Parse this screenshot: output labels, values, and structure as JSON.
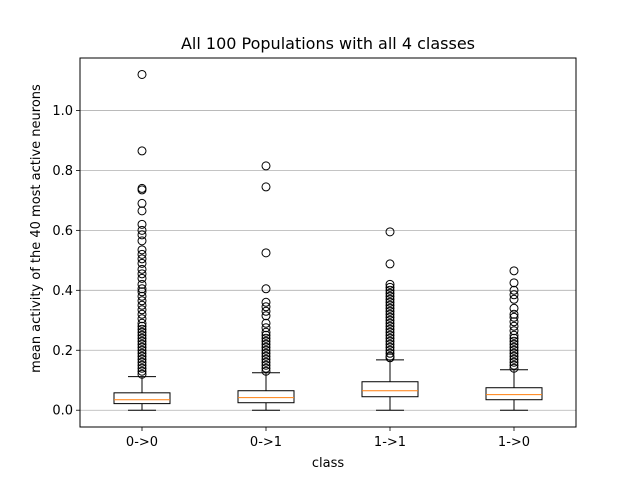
{
  "chart_data": {
    "type": "boxplot",
    "title": "All 100 Populations with all 4 classes",
    "xlabel": "class",
    "ylabel": "mean activity of the 40 most active neurons",
    "categories": [
      "0->0",
      "0->1",
      "1->1",
      "1->0"
    ],
    "ylim": [
      -0.056,
      1.175
    ],
    "yticks": [
      0.0,
      0.2,
      0.4,
      0.6,
      0.8,
      1.0
    ],
    "ytick_labels": [
      "0.0",
      "0.2",
      "0.4",
      "0.6",
      "0.8",
      "1.0"
    ],
    "grid": "horizontal",
    "colors": {
      "box": "#000000",
      "median": "#ff7f0e",
      "grid": "#b0b0b0",
      "flier": "#000000"
    },
    "boxes": [
      {
        "category": "0->0",
        "whisker_low": 0.0,
        "q1": 0.022,
        "median": 0.035,
        "q3": 0.058,
        "whisker_high": 0.112,
        "fliers": [
          1.12,
          0.865,
          0.74,
          0.735,
          0.69,
          0.665,
          0.62,
          0.6,
          0.585,
          0.565,
          0.535,
          0.52,
          0.505,
          0.49,
          0.47,
          0.455,
          0.44,
          0.42,
          0.405,
          0.395,
          0.38,
          0.365,
          0.35,
          0.335,
          0.32,
          0.305,
          0.29,
          0.28,
          0.27,
          0.26,
          0.25,
          0.24,
          0.23,
          0.22,
          0.21,
          0.2,
          0.19,
          0.18,
          0.17,
          0.16,
          0.15,
          0.14,
          0.13,
          0.12
        ]
      },
      {
        "category": "0->1",
        "whisker_low": 0.0,
        "q1": 0.025,
        "median": 0.042,
        "q3": 0.065,
        "whisker_high": 0.125,
        "fliers": [
          0.815,
          0.745,
          0.525,
          0.405,
          0.36,
          0.345,
          0.33,
          0.315,
          0.29,
          0.275,
          0.26,
          0.25,
          0.24,
          0.23,
          0.22,
          0.21,
          0.2,
          0.19,
          0.18,
          0.17,
          0.16,
          0.15,
          0.14,
          0.13
        ]
      },
      {
        "category": "1->1",
        "whisker_low": 0.0,
        "q1": 0.045,
        "median": 0.065,
        "q3": 0.095,
        "whisker_high": 0.168,
        "fliers": [
          0.595,
          0.488,
          0.42,
          0.41,
          0.4,
          0.39,
          0.38,
          0.37,
          0.36,
          0.35,
          0.34,
          0.33,
          0.32,
          0.31,
          0.3,
          0.29,
          0.28,
          0.27,
          0.26,
          0.25,
          0.24,
          0.23,
          0.22,
          0.21,
          0.2,
          0.19,
          0.18,
          0.175
        ]
      },
      {
        "category": "1->0",
        "whisker_low": 0.0,
        "q1": 0.035,
        "median": 0.052,
        "q3": 0.075,
        "whisker_high": 0.135,
        "fliers": [
          0.465,
          0.425,
          0.4,
          0.385,
          0.37,
          0.34,
          0.32,
          0.31,
          0.295,
          0.28,
          0.265,
          0.25,
          0.24,
          0.23,
          0.22,
          0.21,
          0.2,
          0.19,
          0.18,
          0.17,
          0.16,
          0.15,
          0.14
        ]
      }
    ]
  }
}
